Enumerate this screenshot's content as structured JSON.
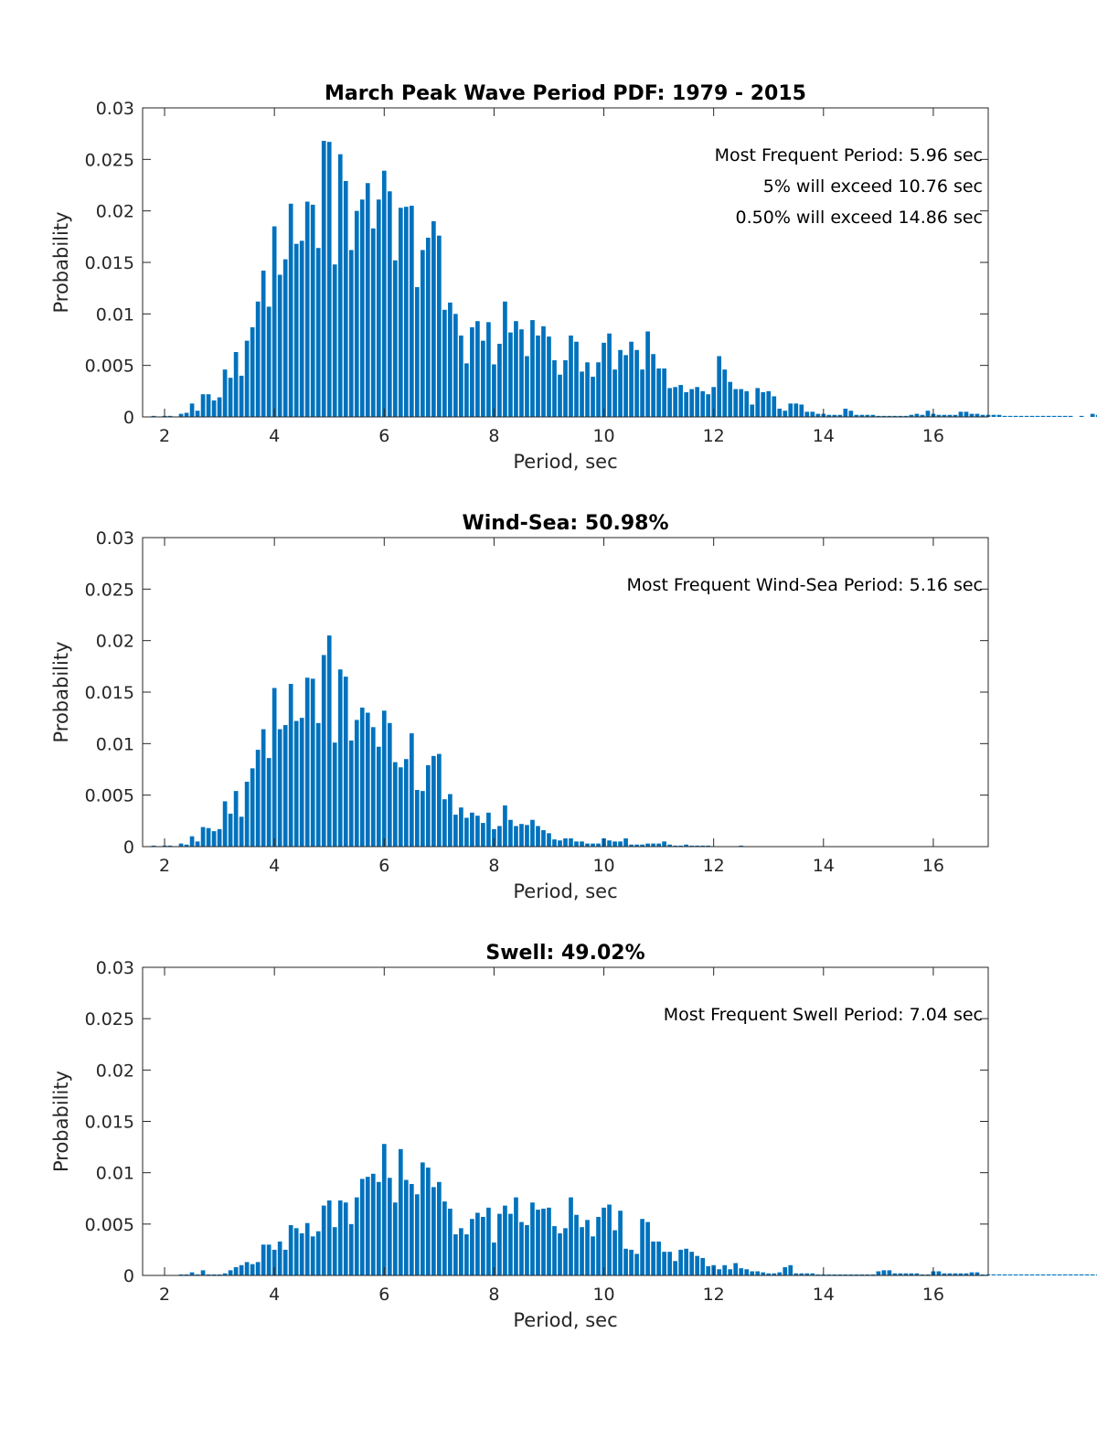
{
  "chart_data": [
    {
      "type": "bar",
      "title": "March Peak Wave Period PDF: 1979 - 2015",
      "xlabel": "Period, sec",
      "ylabel": "Probability",
      "xlim": [
        1.6,
        17.0
      ],
      "ylim": [
        0,
        0.03
      ],
      "xticks": [
        "2",
        "4",
        "6",
        "8",
        "10",
        "12",
        "14",
        "16"
      ],
      "yticks": [
        "0",
        "0.005",
        "0.01",
        "0.015",
        "0.02",
        "0.025",
        "0.03"
      ],
      "color": "#0072BD",
      "annotations": [
        "Most Frequent Period: 5.96 sec",
        "5% will exceed 10.76 sec",
        "0.50% will exceed 14.86 sec"
      ],
      "bin_width": 0.1,
      "x_start": 1.8,
      "values": [
        0.0001,
        0,
        0.0001,
        0.0001,
        0,
        0.0003,
        0.0004,
        0.0013,
        0.0006,
        0.0022,
        0.0022,
        0.0016,
        0.0019,
        0.0046,
        0.0038,
        0.0063,
        0.004,
        0.0074,
        0.0087,
        0.0112,
        0.0142,
        0.0107,
        0.0185,
        0.0138,
        0.0153,
        0.0207,
        0.0168,
        0.0171,
        0.0209,
        0.0206,
        0.0164,
        0.0268,
        0.0267,
        0.0148,
        0.0255,
        0.0229,
        0.0162,
        0.02,
        0.0211,
        0.0227,
        0.0183,
        0.0211,
        0.0239,
        0.0219,
        0.0152,
        0.0203,
        0.0204,
        0.0205,
        0.0126,
        0.0162,
        0.0174,
        0.019,
        0.0176,
        0.0104,
        0.0111,
        0.01,
        0.0079,
        0.0052,
        0.0087,
        0.0093,
        0.0074,
        0.0092,
        0.0051,
        0.0071,
        0.0112,
        0.0082,
        0.0093,
        0.0085,
        0.0059,
        0.0094,
        0.0079,
        0.0088,
        0.0078,
        0.0055,
        0.0041,
        0.0055,
        0.0079,
        0.0073,
        0.0044,
        0.0053,
        0.0039,
        0.0053,
        0.0072,
        0.0081,
        0.0046,
        0.0065,
        0.006,
        0.0073,
        0.0065,
        0.0046,
        0.0083,
        0.0061,
        0.0047,
        0.0047,
        0.0028,
        0.0029,
        0.0031,
        0.0024,
        0.0027,
        0.0029,
        0.0025,
        0.0022,
        0.0029,
        0.0059,
        0.0046,
        0.0034,
        0.0027,
        0.0027,
        0.0025,
        0.0012,
        0.0028,
        0.0024,
        0.0025,
        0.002,
        0.0008,
        0.0006,
        0.0013,
        0.0013,
        0.0012,
        0.0005,
        0.0005,
        0.0003,
        0.0003,
        0.0002,
        0.0002,
        0.0002,
        0.0008,
        0.0006,
        0.0002,
        0.0002,
        0.0002,
        0.0002,
        0.0001,
        0.0001,
        0.0001,
        0.0001,
        0.0001,
        0.0001,
        0.0002,
        0.0003,
        0.0002,
        0.0006,
        0.0003,
        0.0002,
        0.0002,
        0.0002,
        0.0002,
        0.0005,
        0.0005,
        0.0003,
        0.0003,
        0.0002,
        0.0002,
        0.0002,
        0.0002,
        0.0001,
        0.0001,
        0.0001,
        0.0001,
        0.0001,
        0.0001,
        0.0001,
        0.0001,
        0.0001,
        0.0001,
        0.0001,
        0.0001,
        0.0001,
        0,
        0.0001,
        0,
        0.0003,
        0.0002,
        0.0001,
        0.0001,
        0,
        0.0001
      ]
    },
    {
      "type": "bar",
      "title": "Wind-Sea: 50.98%",
      "xlabel": "Period, sec",
      "ylabel": "Probability",
      "xlim": [
        1.6,
        17.0
      ],
      "ylim": [
        0,
        0.03
      ],
      "xticks": [
        "2",
        "4",
        "6",
        "8",
        "10",
        "12",
        "14",
        "16"
      ],
      "yticks": [
        "0",
        "0.005",
        "0.01",
        "0.015",
        "0.02",
        "0.025",
        "0.03"
      ],
      "color": "#0072BD",
      "annotations": [
        "Most Frequent Wind-Sea Period: 5.16 sec"
      ],
      "bin_width": 0.1,
      "x_start": 1.8,
      "values": [
        0.0001,
        0,
        0.0001,
        0.0001,
        0,
        0.0003,
        0.0002,
        0.001,
        0.0005,
        0.0019,
        0.0018,
        0.0015,
        0.0017,
        0.0044,
        0.0032,
        0.0054,
        0.0029,
        0.0063,
        0.0076,
        0.0094,
        0.0114,
        0.0086,
        0.0154,
        0.0114,
        0.0118,
        0.0158,
        0.0122,
        0.0125,
        0.0164,
        0.0163,
        0.012,
        0.0186,
        0.0205,
        0.0101,
        0.0172,
        0.0165,
        0.0103,
        0.0123,
        0.0135,
        0.013,
        0.0116,
        0.0097,
        0.0132,
        0.012,
        0.0082,
        0.0077,
        0.0085,
        0.011,
        0.0055,
        0.0054,
        0.0079,
        0.0088,
        0.009,
        0.0046,
        0.0051,
        0.0031,
        0.0038,
        0.0028,
        0.0033,
        0.003,
        0.0023,
        0.0033,
        0.0017,
        0.002,
        0.004,
        0.0026,
        0.002,
        0.0022,
        0.0021,
        0.0026,
        0.002,
        0.0016,
        0.0013,
        0.0007,
        0.0006,
        0.0008,
        0.0008,
        0.0005,
        0.0005,
        0.0003,
        0.0003,
        0.0003,
        0.0008,
        0.0006,
        0.0005,
        0.0005,
        0.0008,
        0.0002,
        0.0002,
        0.0002,
        0.0003,
        0.0003,
        0.0003,
        0.0005,
        0.0002,
        0.0001,
        0.0001,
        0.0002,
        0.0001,
        0.0001,
        0.0001,
        0.0001,
        0,
        0,
        0,
        0,
        0,
        0.0001
      ]
    },
    {
      "type": "bar",
      "title": "Swell: 49.02%",
      "xlabel": "Period, sec",
      "ylabel": "Probability",
      "xlim": [
        1.6,
        17.0
      ],
      "ylim": [
        0,
        0.03
      ],
      "xticks": [
        "2",
        "4",
        "6",
        "8",
        "10",
        "12",
        "14",
        "16"
      ],
      "yticks": [
        "0",
        "0.005",
        "0.01",
        "0.015",
        "0.02",
        "0.025",
        "0.03"
      ],
      "color": "#0072BD",
      "annotations": [
        "Most Frequent Swell Period: 7.04 sec"
      ],
      "bin_width": 0.1,
      "x_start": 1.8,
      "values": [
        0,
        0,
        0,
        0,
        0,
        0.0001,
        0.0001,
        0.0003,
        0.0001,
        0.0005,
        0.0001,
        0.0001,
        0.0001,
        0.0002,
        0.0005,
        0.0008,
        0.001,
        0.0013,
        0.0011,
        0.0013,
        0.003,
        0.003,
        0.0025,
        0.0033,
        0.0025,
        0.0049,
        0.0046,
        0.0041,
        0.0051,
        0.0038,
        0.0043,
        0.0068,
        0.0073,
        0.0047,
        0.0073,
        0.0071,
        0.005,
        0.0076,
        0.0094,
        0.0096,
        0.0099,
        0.0091,
        0.0128,
        0.0095,
        0.0071,
        0.0123,
        0.0093,
        0.0089,
        0.0079,
        0.011,
        0.0105,
        0.0086,
        0.0091,
        0.0072,
        0.0065,
        0.004,
        0.0046,
        0.004,
        0.0055,
        0.0061,
        0.0057,
        0.0066,
        0.0032,
        0.006,
        0.0068,
        0.006,
        0.0076,
        0.0052,
        0.0049,
        0.0071,
        0.0064,
        0.0065,
        0.0066,
        0.0048,
        0.0041,
        0.0046,
        0.0076,
        0.0059,
        0.0047,
        0.0054,
        0.0038,
        0.0057,
        0.0066,
        0.0069,
        0.0044,
        0.0063,
        0.0026,
        0.0025,
        0.0021,
        0.0055,
        0.0052,
        0.0033,
        0.0033,
        0.0023,
        0.0023,
        0.0014,
        0.0025,
        0.0026,
        0.0023,
        0.0019,
        0.0017,
        0.0009,
        0.001,
        0.0006,
        0.001,
        0.0006,
        0.0012,
        0.0007,
        0.0006,
        0.0004,
        0.0004,
        0.0003,
        0.0002,
        0.0002,
        0.0003,
        0.0008,
        0.001,
        0.0002,
        0.0002,
        0.0002,
        0.0002,
        0.0001,
        0.0001,
        0.0001,
        0.0001,
        0.0001,
        0.0001,
        0.0001,
        0.0001,
        0.0001,
        0.0001,
        0.0001,
        0.0004,
        0.0005,
        0.0005,
        0.0002,
        0.0002,
        0.0002,
        0.0002,
        0.0002,
        0.0001,
        0.0001,
        0.0004,
        0.0004,
        0.0002,
        0.0002,
        0.0002,
        0.0002,
        0.0002,
        0.0003,
        0.0003,
        0.0001,
        0.0001,
        0.0001,
        0.0001,
        0.0001,
        0.0001,
        0.0001,
        0.0001,
        0.0001,
        0.0001,
        0.0001,
        0.0001,
        0.0001,
        0.0001,
        0.0001,
        0.0001,
        0.0001,
        0.0001,
        0.0001,
        0.0001,
        0.0001,
        0.0001,
        0.0002,
        0.0001,
        0.0001,
        0.0001,
        0.0001
      ]
    }
  ]
}
